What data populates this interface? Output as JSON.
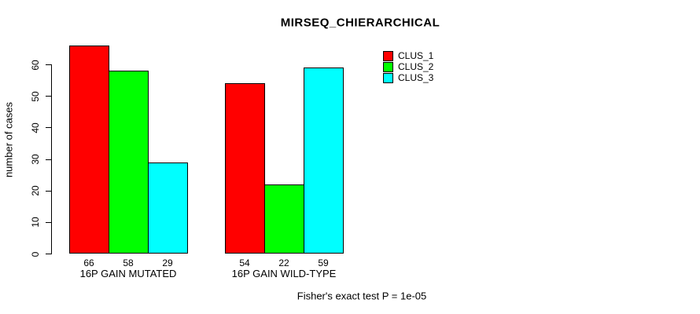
{
  "chart_data": {
    "type": "bar",
    "title": "MIRSEQ_CHIERARCHICAL",
    "ylabel": "number of cases",
    "xlabel": "",
    "categories": [
      "16P GAIN MUTATED",
      "16P GAIN WILD-TYPE"
    ],
    "series": [
      {
        "name": "CLUS_1",
        "color": "#FF0000",
        "values": [
          66,
          54
        ]
      },
      {
        "name": "CLUS_2",
        "color": "#00FF00",
        "values": [
          58,
          22
        ]
      },
      {
        "name": "CLUS_3",
        "color": "#00FFFF",
        "values": [
          29,
          59
        ]
      }
    ],
    "yticks": [
      0,
      10,
      20,
      30,
      40,
      50,
      60
    ],
    "ylim": [
      0,
      66
    ],
    "grid": false,
    "legend_position": "topright",
    "bar_value_labels": [
      [
        "66",
        "58",
        "29"
      ],
      [
        "54",
        "22",
        "59"
      ]
    ],
    "annotation": "Fisher's exact test P = 1e-05"
  },
  "colors": {
    "background": "#FFFFFF",
    "axis": "#000000",
    "text": "#000000",
    "clus_1": "#FF0000",
    "clus_2": "#00FF00",
    "clus_3": "#00FFFF"
  }
}
